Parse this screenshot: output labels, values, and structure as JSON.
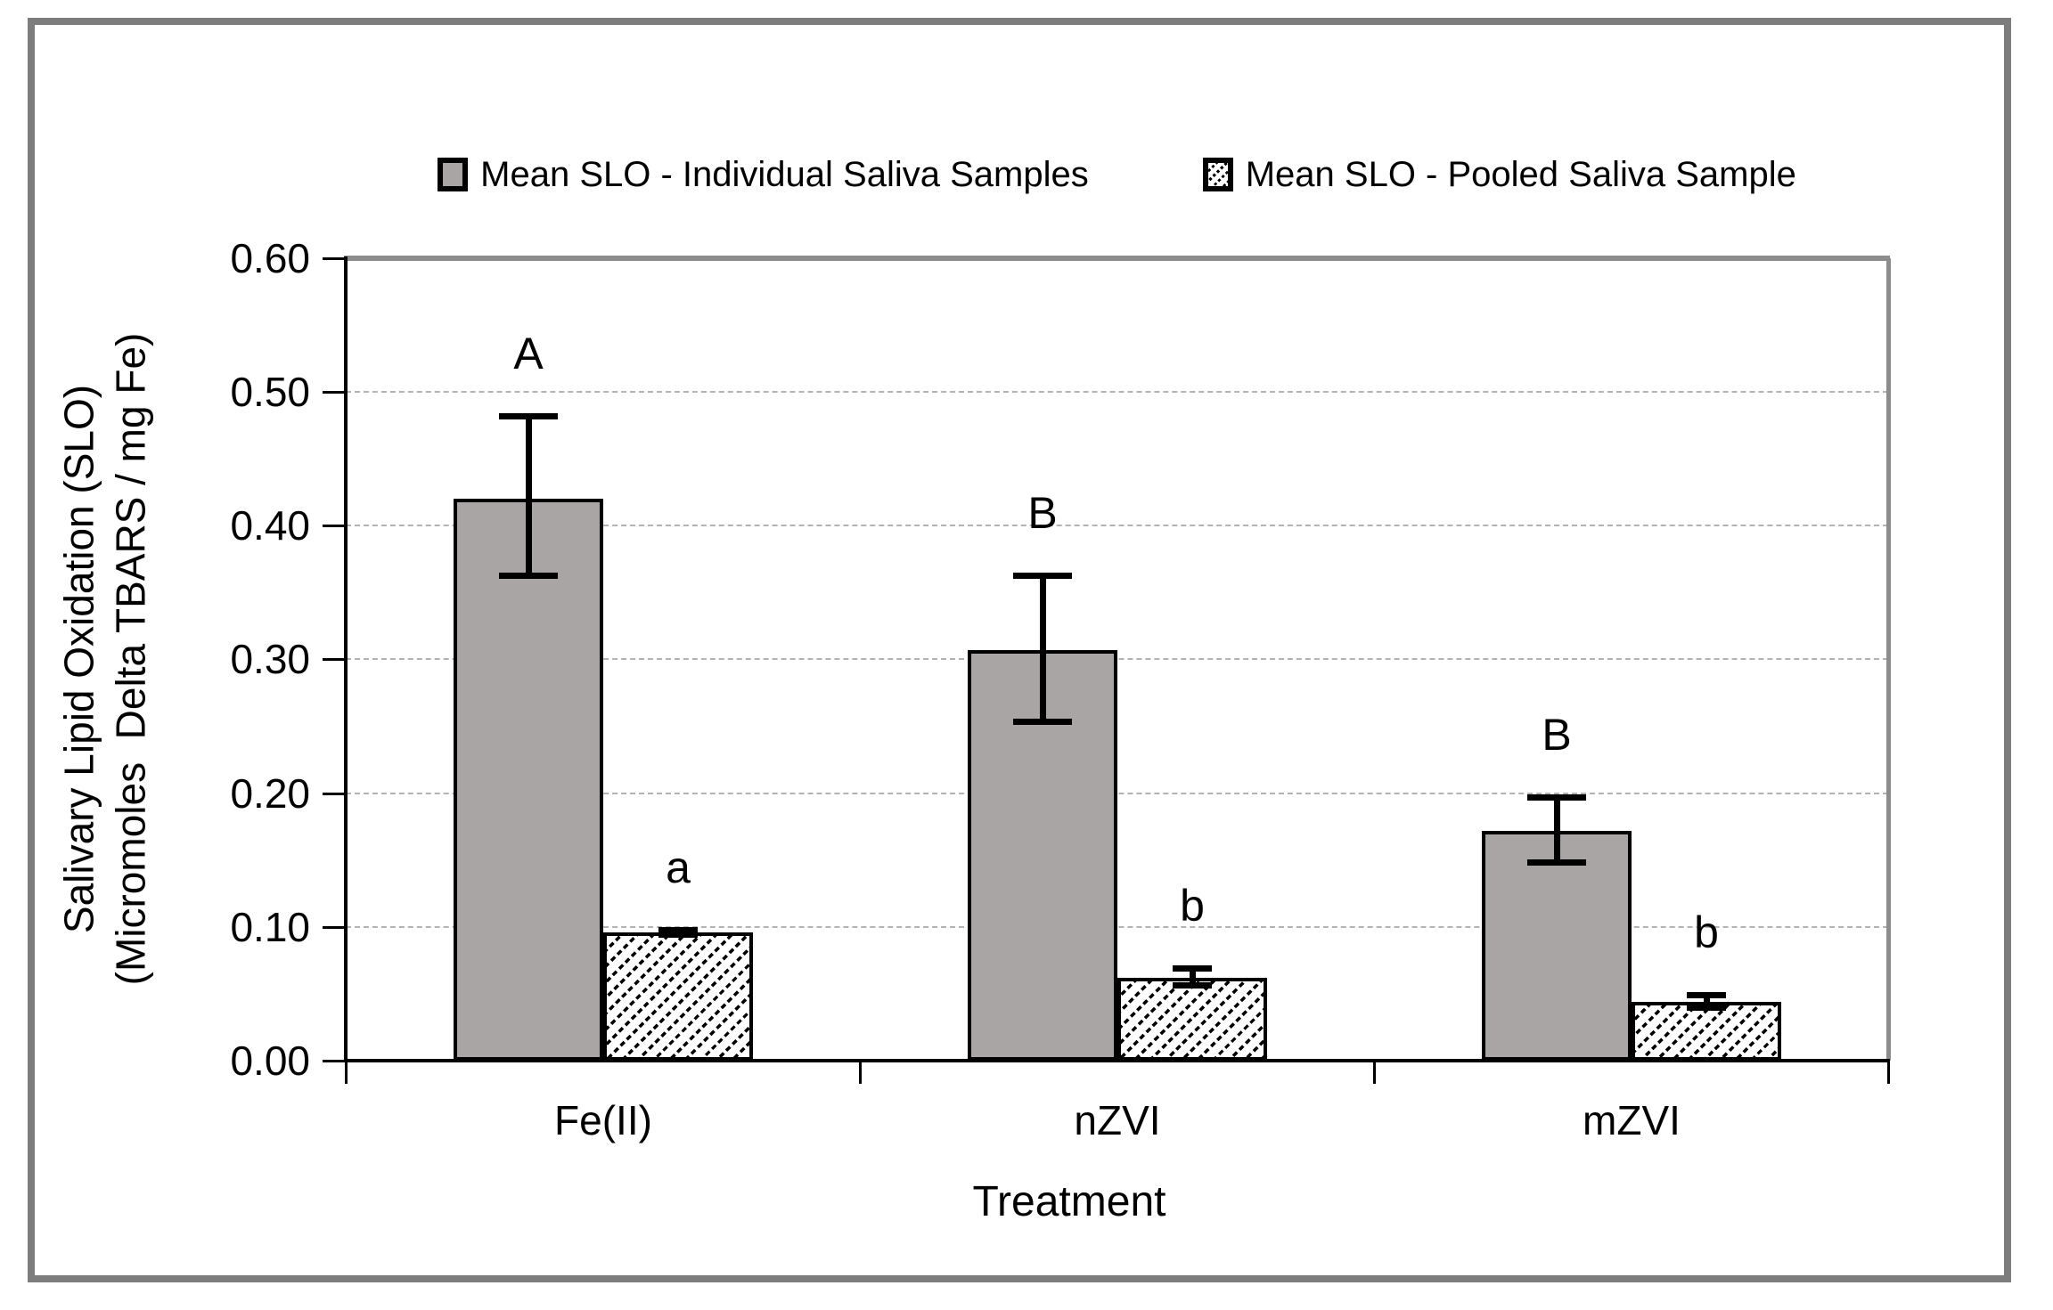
{
  "legend": [
    {
      "label": "Mean SLO - Individual Saliva Samples",
      "marker": "solid-gray-square"
    },
    {
      "label": "Mean SLO - Pooled Saliva Sample",
      "marker": "hatched-square"
    }
  ],
  "chart_data": {
    "type": "bar",
    "title": "",
    "categories": [
      "Fe(II)",
      "nZVI",
      "mZVI"
    ],
    "series": [
      {
        "name": "Mean SLO - Individual Saliva Samples",
        "style": "solid-gray",
        "values": [
          0.42,
          0.307,
          0.172
        ],
        "error_low": [
          0.36,
          0.251,
          0.146
        ],
        "error_high": [
          0.484,
          0.365,
          0.199
        ],
        "letters": [
          "A",
          "B",
          "B"
        ]
      },
      {
        "name": "Mean SLO - Pooled Saliva Sample",
        "style": "hatched",
        "values": [
          0.096,
          0.062,
          0.044
        ],
        "error_low": [
          0.092,
          0.054,
          0.037
        ],
        "error_high": [
          0.1,
          0.071,
          0.051
        ],
        "letters": [
          "a",
          "b",
          "b"
        ]
      }
    ],
    "xlabel": "Treatment",
    "ylabel_line1": "Salivary Lipid Oxidation (SLO)",
    "ylabel_line2": "(Micromoles  Delta TBARS / mg Fe)",
    "ylim": [
      0.0,
      0.6
    ],
    "ytick_step": 0.1,
    "yticks": [
      "0.00",
      "0.10",
      "0.20",
      "0.30",
      "0.40",
      "0.50",
      "0.60"
    ],
    "grid": "dashed-horizontal",
    "legend_position": "top-center",
    "error_bars": "both-directions-with-caps"
  },
  "colors": {
    "bar_gray_fill": "#aaa5a5",
    "bar_border": "#000000",
    "hatch_line": "#000000",
    "gridline": "#b3b3b3",
    "axis_line": "#000000",
    "plot_border_gray": "#8c8c8c",
    "outer_frame": "#7d7d7d",
    "text": "#000000",
    "background": "#ffffff"
  }
}
